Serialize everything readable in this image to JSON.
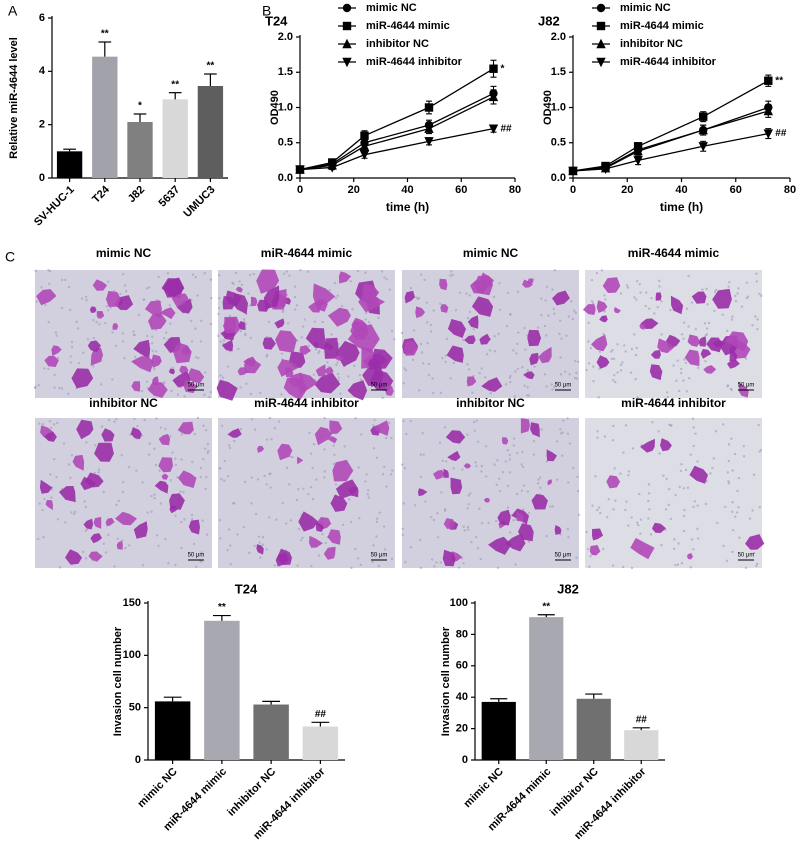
{
  "panel_labels": [
    "A",
    "B",
    "C"
  ],
  "chart_data": [
    {
      "type": "bar",
      "ylabel": "Relative miR-4644 level",
      "categories": [
        "SV-HUC-1",
        "T24",
        "J82",
        "5637",
        "UMUC3"
      ],
      "values": [
        1.0,
        4.55,
        2.1,
        2.95,
        3.45
      ],
      "errors": [
        0.08,
        0.55,
        0.3,
        0.25,
        0.45
      ],
      "annotations": [
        null,
        "**",
        "*",
        "**",
        "**"
      ],
      "colors": [
        "#000000",
        "#a2a2aa",
        "#808080",
        "#d8d8d8",
        "#5e5e5e"
      ],
      "ylim": [
        0,
        6
      ],
      "yticks": [
        0,
        2,
        4,
        6
      ]
    },
    {
      "type": "line",
      "title": "T24",
      "xlabel": "time (h)",
      "ylabel": "OD490",
      "x": [
        0,
        12,
        24,
        48,
        72
      ],
      "series": [
        {
          "name": "mimic NC",
          "marker": "circle",
          "values": [
            0.12,
            0.2,
            0.5,
            0.75,
            1.2
          ],
          "errors": [
            0.03,
            0.04,
            0.06,
            0.07,
            0.1
          ]
        },
        {
          "name": "miR-4644 mimic",
          "marker": "square",
          "values": [
            0.12,
            0.22,
            0.6,
            1.0,
            1.55
          ],
          "errors": [
            0.03,
            0.04,
            0.07,
            0.09,
            0.12
          ],
          "annotation": "*"
        },
        {
          "name": "inhibitor NC",
          "marker": "triangle-up",
          "values": [
            0.12,
            0.18,
            0.45,
            0.7,
            1.15
          ],
          "errors": [
            0.03,
            0.04,
            0.06,
            0.07,
            0.1
          ]
        },
        {
          "name": "miR-4644 inhibitor",
          "marker": "triangle-down",
          "values": [
            0.12,
            0.15,
            0.33,
            0.52,
            0.7
          ],
          "errors": [
            0.03,
            0.03,
            0.05,
            0.05,
            0.05
          ],
          "annotation": "##"
        }
      ],
      "color": "#000000",
      "xlim": [
        0,
        80
      ],
      "xticks": [
        0,
        20,
        40,
        60,
        80
      ],
      "ylim": [
        0,
        2
      ],
      "yticks": [
        {
          "value": 0,
          "label": "0.0"
        },
        0.5,
        {
          "value": 1,
          "label": "1.0"
        },
        1.5,
        {
          "value": 2,
          "label": "2.0"
        }
      ]
    },
    {
      "type": "line",
      "title": "J82",
      "xlabel": "time (h)",
      "ylabel": "OD490",
      "x": [
        0,
        12,
        24,
        48,
        72
      ],
      "series": [
        {
          "name": "mimic NC",
          "marker": "circle",
          "values": [
            0.1,
            0.15,
            0.4,
            0.68,
            1.0
          ],
          "errors": [
            0.03,
            0.03,
            0.05,
            0.07,
            0.09
          ]
        },
        {
          "name": "miR-4644 mimic",
          "marker": "square",
          "values": [
            0.1,
            0.17,
            0.45,
            0.87,
            1.38
          ],
          "errors": [
            0.03,
            0.03,
            0.05,
            0.07,
            0.08
          ],
          "annotation": "**"
        },
        {
          "name": "inhibitor NC",
          "marker": "triangle-up",
          "values": [
            0.1,
            0.14,
            0.38,
            0.68,
            0.95
          ],
          "errors": [
            0.03,
            0.03,
            0.05,
            0.07,
            0.09
          ]
        },
        {
          "name": "miR-4644 inhibitor",
          "marker": "triangle-down",
          "values": [
            0.1,
            0.13,
            0.25,
            0.45,
            0.63
          ],
          "errors": [
            0.03,
            0.03,
            0.06,
            0.07,
            0.07
          ],
          "annotation": "##"
        }
      ],
      "color": "#000000",
      "xlim": [
        0,
        80
      ],
      "xticks": [
        0,
        20,
        40,
        60,
        80
      ],
      "ylim": [
        0,
        2
      ],
      "yticks": [
        {
          "value": 0,
          "label": "0.0"
        },
        0.5,
        {
          "value": 1,
          "label": "1.0"
        },
        1.5,
        {
          "value": 2,
          "label": "2.0"
        }
      ]
    },
    {
      "type": "bar",
      "title": "T24",
      "ylabel": "Invasion cell number",
      "categories": [
        "mimic NC",
        "miR-4644 mimic",
        "inhibitor NC",
        "miR-4644 inhibitor"
      ],
      "values": [
        56,
        133,
        53,
        32
      ],
      "errors": [
        4,
        5,
        3,
        4
      ],
      "annotations": [
        null,
        "**",
        null,
        "##"
      ],
      "colors": [
        "#000000",
        "#a8a8b0",
        "#707070",
        "#d8d8d8"
      ],
      "ylim": [
        0,
        150
      ],
      "yticks": [
        0,
        50,
        100,
        150
      ]
    },
    {
      "type": "bar",
      "title": "J82",
      "ylabel": "Invasion cell number",
      "categories": [
        "mimic NC",
        "miR-4644 mimic",
        "inhibitor NC",
        "miR-4644 inhibitor"
      ],
      "values": [
        37,
        91,
        39,
        19
      ],
      "errors": [
        2,
        1.5,
        3,
        1.5
      ],
      "annotations": [
        null,
        "**",
        null,
        "##"
      ],
      "colors": [
        "#000000",
        "#a8a8b0",
        "#707070",
        "#d8d8d8"
      ],
      "ylim": [
        0,
        100
      ],
      "yticks": [
        0,
        20,
        40,
        60,
        80,
        100
      ]
    }
  ],
  "images": [
    {
      "title": "mimic NC",
      "scale": "50 μm"
    },
    {
      "title": "miR-4644 mimic",
      "scale": "50 μm"
    },
    {
      "title": "mimic NC",
      "scale": "50 μm"
    },
    {
      "title": "miR-4644 mimic",
      "scale": "50 μm"
    },
    {
      "title": "inhibitor NC",
      "scale": "50 μm"
    },
    {
      "title": "miR-4644 inhibitor",
      "scale": "50 μm"
    },
    {
      "title": "inhibitor NC",
      "scale": "50 μm"
    },
    {
      "title": "miR-4644 inhibitor",
      "scale": "50 μm"
    }
  ]
}
